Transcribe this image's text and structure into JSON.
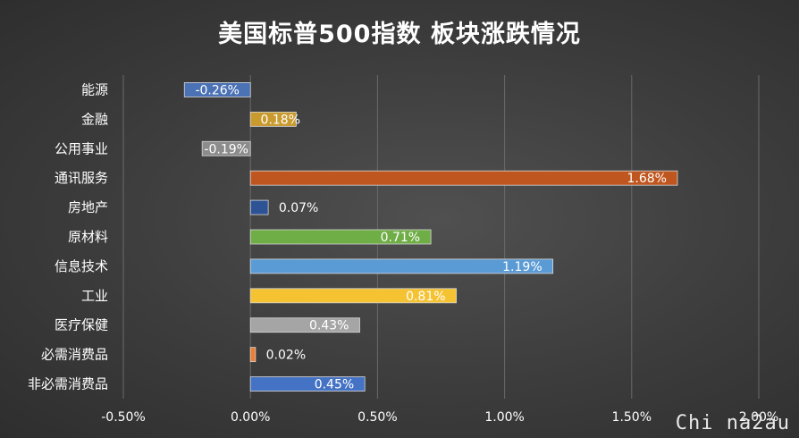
{
  "title": "美国标普500指数 板块涨跌情况",
  "watermark": "Chi na2au",
  "chart_data": {
    "type": "bar",
    "orientation": "horizontal",
    "categories": [
      "能源",
      "金融",
      "公用事业",
      "通讯服务",
      "房地产",
      "原材料",
      "信息技术",
      "工业",
      "医疗保健",
      "必需消费品",
      "非必需消费品"
    ],
    "values": [
      -0.26,
      0.18,
      -0.19,
      1.68,
      0.07,
      0.71,
      1.19,
      0.81,
      0.43,
      0.02,
      0.45
    ],
    "value_labels": [
      "-0.26%",
      "0.18%",
      "-0.19%",
      "1.68%",
      "0.07%",
      "0.71%",
      "1.19%",
      "0.81%",
      "0.43%",
      "0.02%",
      "0.45%"
    ],
    "colors": [
      "#4a72b4",
      "#c99a2e",
      "#8c8c8c",
      "#c0561f",
      "#2e5395",
      "#6fad46",
      "#5b9bd5",
      "#f5c232",
      "#a5a5a5",
      "#ed7d31",
      "#4472c4"
    ],
    "xlim": [
      -0.5,
      2.0
    ],
    "x_ticks": [
      -0.5,
      0,
      0.5,
      1.0,
      1.5,
      2.0
    ],
    "x_tick_labels": [
      "-0.50%",
      "0.00%",
      "0.50%",
      "1.00%",
      "1.50%",
      "2.00%"
    ],
    "grid": true,
    "legend": "none"
  }
}
